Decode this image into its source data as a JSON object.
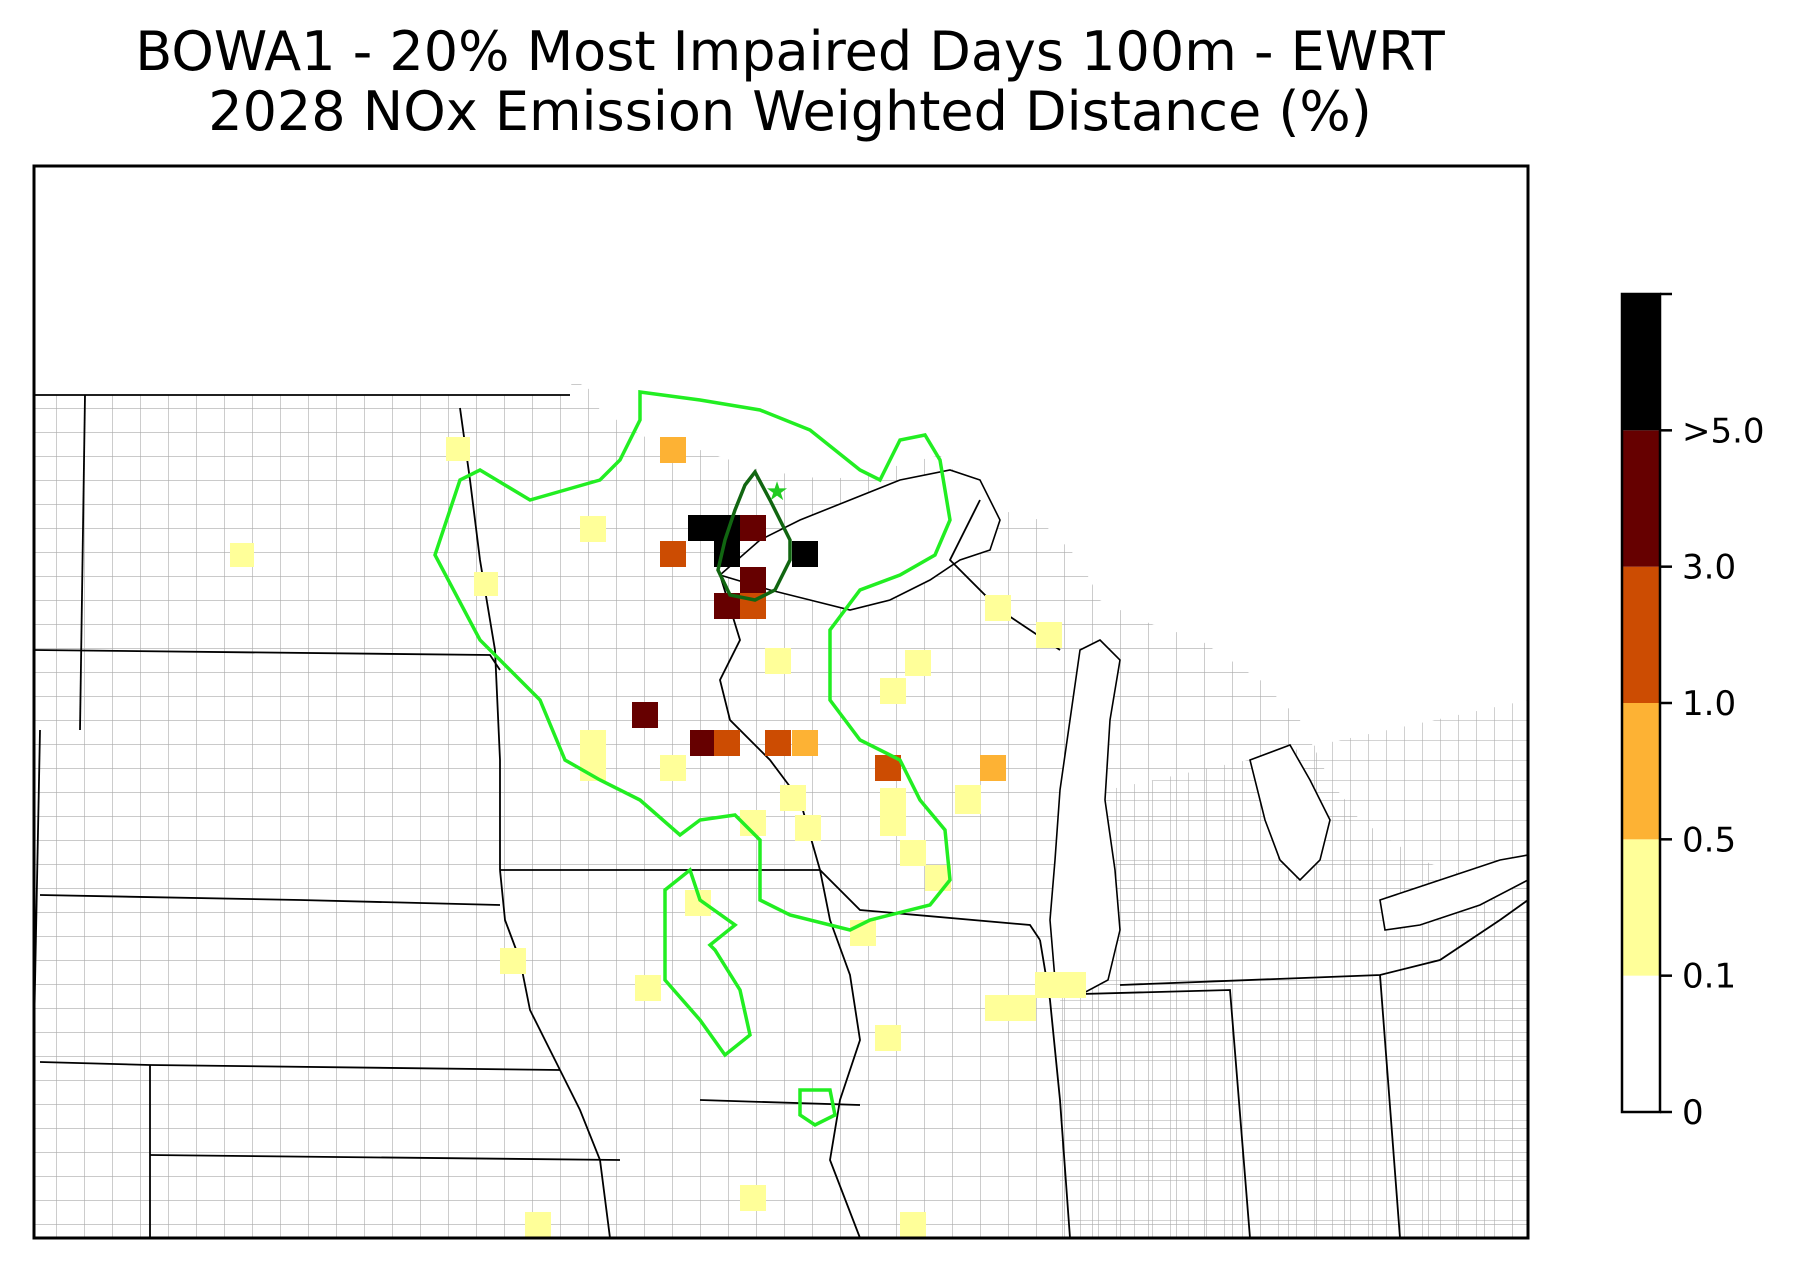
{
  "title": {
    "line1": "BOWA1 - 20% Most Impaired Days 100m - EWRT",
    "line2": "2028 NOx Emission Weighted Distance (%)"
  },
  "legend": {
    "bins": [
      {
        "from": "0",
        "to": "0.1",
        "color": "#ffffff"
      },
      {
        "from": "0.1",
        "to": "0.5",
        "color": "#ffff99"
      },
      {
        "from": "0.5",
        "to": "1.0",
        "color": "#fdb234"
      },
      {
        "from": "1.0",
        "to": "3.0",
        "color": "#cc4c02"
      },
      {
        "from": "3.0",
        "to": ">5.0",
        "color": "#660000"
      },
      {
        "from": ">5.0",
        "to": "",
        "color": "#000000"
      }
    ],
    "tick_labels": [
      "0",
      "0.1",
      "0.5",
      "1.0",
      "3.0",
      ">5.0"
    ]
  },
  "map": {
    "site_marker": "star-icon",
    "contour_colors": {
      "outer": "#22ee22",
      "inner": "#116611"
    },
    "state_line_color": "#000000",
    "county_line_color": "#aaaaaa",
    "cells": [
      {
        "col": 0,
        "row": 0,
        "bin": 2
      },
      {
        "col": 1,
        "row": 1,
        "bin": 1
      },
      {
        "col": 2,
        "row": 2,
        "bin": 5
      },
      {
        "col": 3,
        "row": 2,
        "bin": 5
      },
      {
        "col": 4,
        "row": 2,
        "bin": 4
      },
      {
        "col": 3,
        "row": 3,
        "bin": 5
      },
      {
        "col": 5,
        "row": 3,
        "bin": 5
      },
      {
        "col": 0,
        "row": 3,
        "bin": 3
      },
      {
        "col": 4,
        "row": 4,
        "bin": 4
      },
      {
        "col": 3,
        "row": 5,
        "bin": 4
      },
      {
        "col": 4,
        "row": 5,
        "bin": 3
      },
      {
        "col": 1,
        "row": 6,
        "bin": 1
      },
      {
        "col": 2,
        "row": 7,
        "bin": 4
      },
      {
        "col": 3,
        "row": 7,
        "bin": 4
      },
      {
        "col": 4,
        "row": 7,
        "bin": 3
      },
      {
        "col": 5,
        "row": 7,
        "bin": 3
      },
      {
        "col": 6,
        "row": 7,
        "bin": 2
      },
      {
        "col": 7,
        "row": 8,
        "bin": 3
      },
      {
        "col": 8,
        "row": 8,
        "bin": 2
      },
      {
        "col": 0,
        "row": 7,
        "bin": 4
      },
      {
        "col": 1,
        "row": 9,
        "bin": 1
      },
      {
        "col": 2,
        "row": 9,
        "bin": 1
      }
    ]
  }
}
